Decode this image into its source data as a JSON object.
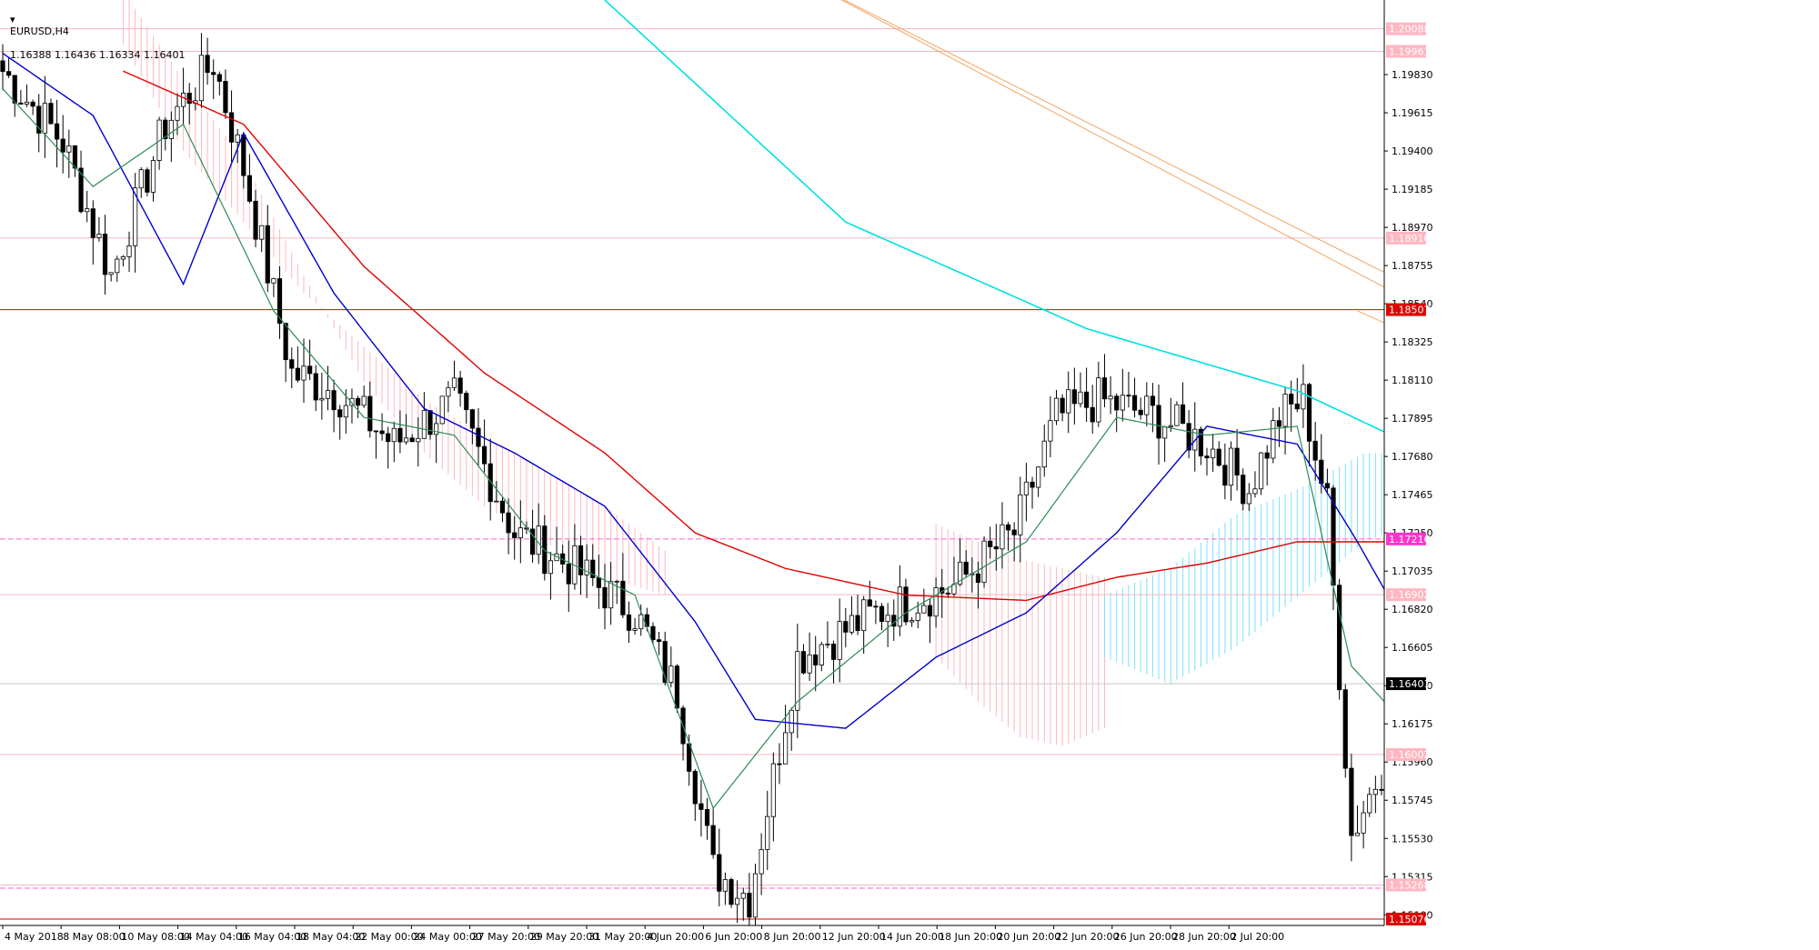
{
  "header": {
    "symbol": "EURUSD,H4",
    "ohlc": "1.16388 1.16436 1.16334 1.16401"
  },
  "colors": {
    "background": "#ffffff",
    "bull_candle": "#ffffff",
    "bear_candle": "#000000",
    "ema_fast": "#2e8b57",
    "ema_mid": "#0000cd",
    "ema_slow": "#e00000",
    "ma_long": "#00e0e0",
    "cloud_bear": "#ffb6c1",
    "cloud_bull": "#7fdfff",
    "trendline": "#f4a460",
    "resistance": "#e00000",
    "support_dash": "#ff66cc",
    "marker_blue": "#0000cd",
    "marker_green": "#2e8b57",
    "price_tag_bg": "#000000",
    "red_tag_bg": "#e00000",
    "pink_tag_bg": "#ffb6c1",
    "magenta_tag_bg": "#ff33cc"
  },
  "chart_data": {
    "type": "candlestick",
    "title": "EURUSD,H4",
    "ylim": [
      1.1504,
      1.2025
    ],
    "y_ticks": [
      "1.19830",
      "1.19615",
      "1.19400",
      "1.19185",
      "1.18970",
      "1.18755",
      "1.18540",
      "1.18325",
      "1.18110",
      "1.17895",
      "1.17680",
      "1.17465",
      "1.17250",
      "1.17035",
      "1.16820",
      "1.16605",
      "1.16390",
      "1.16175",
      "1.15960",
      "1.15745",
      "1.15530",
      "1.15315",
      "1.15100"
    ],
    "x_ticks": [
      "4 May 2018",
      "8 May 08:00",
      "10 May 08:00",
      "14 May 04:00",
      "16 May 04:00",
      "18 May 04:00",
      "22 May 00:00",
      "24 May 00:00",
      "27 May 20:00",
      "29 May 20:00",
      "31 May 20:00",
      "4 Jun 20:00",
      "6 Jun 20:00",
      "8 Jun 20:00",
      "12 Jun 20:00",
      "14 Jun 20:00",
      "18 Jun 20:00",
      "20 Jun 20:00",
      "22 Jun 20:00",
      "26 Jun 20:00",
      "28 Jun 20:00",
      "2 Jul 20:00"
    ],
    "current_price": "1.16401",
    "levels": [
      {
        "label": "1.20088",
        "value": 1.20088,
        "style": "pink"
      },
      {
        "label": "1.19961",
        "value": 1.19961,
        "style": "pink"
      },
      {
        "label": "1.18910",
        "value": 1.1891,
        "style": "pink"
      },
      {
        "label": "1.18507",
        "value": 1.18507,
        "style": "red"
      },
      {
        "label": "1.17216",
        "value": 1.17216,
        "style": "magenta"
      },
      {
        "label": "1.16902",
        "value": 1.16902,
        "style": "pink"
      },
      {
        "label": "1.16002",
        "value": 1.16002,
        "style": "pink"
      },
      {
        "label": "1.15268",
        "value": 1.15268,
        "style": "pink"
      },
      {
        "label": "1.15076",
        "value": 1.15076,
        "style": "red"
      }
    ],
    "anchors": [
      [
        0,
        1.1985
      ],
      [
        10,
        1.1945
      ],
      [
        18,
        1.187
      ],
      [
        27,
        1.1955
      ],
      [
        35,
        1.199
      ],
      [
        40,
        1.193
      ],
      [
        48,
        1.1815
      ],
      [
        55,
        1.1805
      ],
      [
        65,
        1.1775
      ],
      [
        75,
        1.18
      ],
      [
        85,
        1.1725
      ],
      [
        95,
        1.1705
      ],
      [
        105,
        1.168
      ],
      [
        112,
        1.1635
      ],
      [
        118,
        1.1535
      ],
      [
        124,
        1.152
      ],
      [
        132,
        1.1655
      ],
      [
        145,
        1.168
      ],
      [
        158,
        1.1695
      ],
      [
        168,
        1.1725
      ],
      [
        175,
        1.179
      ],
      [
        182,
        1.18
      ],
      [
        192,
        1.179
      ],
      [
        200,
        1.1775
      ],
      [
        207,
        1.175
      ],
      [
        212,
        1.179
      ],
      [
        216,
        1.18
      ],
      [
        220,
        1.174
      ],
      [
        224,
        1.1555
      ],
      [
        230,
        1.16
      ],
      [
        236,
        1.1625
      ],
      [
        242,
        1.1595
      ],
      [
        250,
        1.158
      ],
      [
        256,
        1.156
      ],
      [
        260,
        1.1545
      ],
      [
        264,
        1.1585
      ],
      [
        270,
        1.1625
      ],
      [
        276,
        1.168
      ],
      [
        280,
        1.1705
      ],
      [
        284,
        1.168
      ],
      [
        290,
        1.1585
      ],
      [
        296,
        1.156
      ],
      [
        300,
        1.159
      ],
      [
        305,
        1.166
      ],
      [
        310,
        1.1685
      ],
      [
        316,
        1.1605
      ],
      [
        319,
        1.164
      ]
    ],
    "ema_fast": [
      [
        0,
        1.1975
      ],
      [
        15,
        1.192
      ],
      [
        30,
        1.1955
      ],
      [
        45,
        1.185
      ],
      [
        60,
        1.179
      ],
      [
        75,
        1.178
      ],
      [
        90,
        1.1715
      ],
      [
        105,
        1.169
      ],
      [
        118,
        1.157
      ],
      [
        132,
        1.163
      ],
      [
        150,
        1.168
      ],
      [
        170,
        1.172
      ],
      [
        185,
        1.179
      ],
      [
        200,
        1.178
      ],
      [
        215,
        1.1785
      ],
      [
        224,
        1.165
      ],
      [
        235,
        1.161
      ],
      [
        250,
        1.158
      ],
      [
        262,
        1.159
      ],
      [
        275,
        1.1655
      ],
      [
        284,
        1.169
      ],
      [
        294,
        1.159
      ],
      [
        302,
        1.16
      ],
      [
        310,
        1.166
      ],
      [
        319,
        1.1635
      ]
    ],
    "ema_mid": [
      [
        0,
        1.1995
      ],
      [
        15,
        1.196
      ],
      [
        30,
        1.1865
      ],
      [
        40,
        1.195
      ],
      [
        55,
        1.186
      ],
      [
        70,
        1.1795
      ],
      [
        85,
        1.177
      ],
      [
        100,
        1.174
      ],
      [
        115,
        1.1675
      ],
      [
        125,
        1.162
      ],
      [
        140,
        1.1615
      ],
      [
        155,
        1.1655
      ],
      [
        170,
        1.168
      ],
      [
        185,
        1.1725
      ],
      [
        200,
        1.1785
      ],
      [
        215,
        1.1775
      ],
      [
        225,
        1.172
      ],
      [
        235,
        1.166
      ],
      [
        245,
        1.16
      ],
      [
        255,
        1.1585
      ],
      [
        265,
        1.1605
      ],
      [
        278,
        1.1645
      ],
      [
        288,
        1.166
      ],
      [
        300,
        1.1615
      ],
      [
        310,
        1.1612
      ],
      [
        319,
        1.1612
      ]
    ],
    "ema_slow": [
      [
        20,
        1.1985
      ],
      [
        40,
        1.1955
      ],
      [
        60,
        1.1875
      ],
      [
        80,
        1.1815
      ],
      [
        100,
        1.177
      ],
      [
        115,
        1.1725
      ],
      [
        130,
        1.1705
      ],
      [
        150,
        1.169
      ],
      [
        170,
        1.1687
      ],
      [
        185,
        1.17
      ],
      [
        200,
        1.1708
      ],
      [
        215,
        1.172
      ],
      [
        230,
        1.172
      ],
      [
        250,
        1.171
      ],
      [
        270,
        1.169
      ],
      [
        285,
        1.166
      ],
      [
        300,
        1.164
      ],
      [
        312,
        1.1622
      ],
      [
        319,
        1.1618
      ]
    ],
    "ma_long": [
      [
        100,
        1.2025
      ],
      [
        140,
        1.19
      ],
      [
        180,
        1.184
      ],
      [
        215,
        1.1805
      ],
      [
        240,
        1.1765
      ],
      [
        260,
        1.173
      ],
      [
        280,
        1.171
      ],
      [
        300,
        1.17
      ],
      [
        316,
        1.169
      ]
    ],
    "cloud": [
      {
        "from": 20,
        "to": 110,
        "top": [
          1.203,
          1.198,
          1.1935,
          1.187,
          1.181,
          1.177,
          1.174,
          1.172,
          1.17,
          1.169
        ],
        "bottom": [
          1.2,
          1.194,
          1.19,
          1.186,
          1.183,
          1.18,
          1.178,
          1.176,
          1.174,
          1.1715
        ],
        "kind": "bear"
      },
      {
        "from": 155,
        "to": 183,
        "top": [
          1.173,
          1.172,
          1.171,
          1.1705,
          1.17
        ],
        "bottom": [
          1.1655,
          1.163,
          1.161,
          1.1605,
          1.1615
        ],
        "kind": "bear"
      },
      {
        "from": 183,
        "to": 237,
        "top": [
          1.169,
          1.1705,
          1.1735,
          1.175,
          1.177,
          1.177
        ],
        "bottom": [
          1.1655,
          1.164,
          1.166,
          1.169,
          1.172,
          1.1735
        ],
        "kind": "bull"
      },
      {
        "from": 248,
        "to": 300,
        "top": [
          1.169,
          1.169,
          1.169,
          1.1685,
          1.1675,
          1.165
        ],
        "bottom": [
          1.1665,
          1.164,
          1.161,
          1.1615,
          1.162,
          1.16
        ],
        "kind": "bear"
      },
      {
        "from": 300,
        "to": 346,
        "top": [
          1.165,
          1.162,
          1.161,
          1.161,
          1.1625,
          1.163
        ],
        "bottom": [
          1.16,
          1.16,
          1.16,
          1.1595,
          1.1605,
          1.1615
        ],
        "kind": "bull"
      }
    ],
    "trendlines": [
      {
        "from": [
          131,
          1.204
        ],
        "to": [
          365,
          1.164
        ]
      },
      {
        "from": [
          131,
          1.204
        ],
        "to": [
          365,
          1.162
        ]
      },
      {
        "from": [
          225,
          1.185
        ],
        "to": [
          365,
          1.164
        ]
      },
      {
        "from": [
          272,
          1.15076
        ],
        "to": [
          365,
          1.156
        ]
      }
    ],
    "markers_blue": [
      {
        "from": 271,
        "to": 296,
        "value": 1.1506
      },
      {
        "from": 288,
        "to": 311,
        "value": 1.1736
      },
      {
        "from": 297,
        "to": 318,
        "value": 1.1521
      },
      {
        "from": 313,
        "to": 335,
        "value": 1.1698
      }
    ],
    "markers_green": [
      {
        "from": 268,
        "to": 284,
        "value": 1.1512
      },
      {
        "from": 292,
        "to": 301,
        "value": 1.1731
      },
      {
        "from": 278,
        "to": 290,
        "value": 1.1672
      },
      {
        "from": 300,
        "to": 315,
        "value": 1.159
      },
      {
        "from": 321,
        "to": 331,
        "value": 1.1692
      },
      {
        "from": 306,
        "to": 318,
        "value": 1.1528
      }
    ]
  }
}
